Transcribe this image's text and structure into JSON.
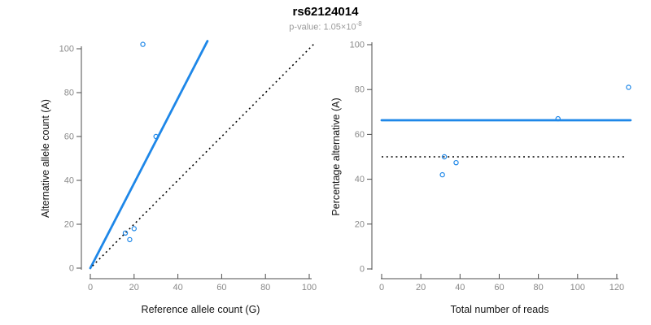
{
  "header": {
    "title": "rs62124014",
    "subtitle_prefix": "p-value: 1.05×10",
    "subtitle_exponent": "-8"
  },
  "colors": {
    "accent_blue": "#1E87E8",
    "dotted_line_black": "#000000",
    "tick_label_gray": "#8A8A8A",
    "axis_line_gray": "#4D4D4D",
    "axis_title_color": "#141414",
    "subtitle_gray": "#9A9A9A"
  },
  "chart_data": [
    {
      "type": "scatter",
      "name": "allele-counts-panel",
      "xlabel": "Reference allele count (G)",
      "ylabel": "Alternative allele count (A)",
      "xlim": [
        0,
        100
      ],
      "ylim": [
        0,
        100
      ],
      "xticks": [
        0,
        20,
        40,
        60,
        80,
        100
      ],
      "yticks": [
        0,
        20,
        40,
        60,
        80,
        100
      ],
      "grid": false,
      "legend": null,
      "points": [
        [
          24,
          102
        ],
        [
          30,
          60
        ],
        [
          20,
          18
        ],
        [
          16,
          16
        ],
        [
          18,
          13
        ]
      ],
      "lines": [
        {
          "name": "fit-line",
          "style": "solid",
          "color_key": "accent_blue",
          "x1": 0,
          "y1": 0,
          "x2": 53.5,
          "y2": 103.5
        },
        {
          "name": "identity-line",
          "style": "dotted",
          "color_key": "dotted_line_black",
          "x1": 1,
          "y1": 1,
          "x2": 102,
          "y2": 102
        }
      ]
    },
    {
      "type": "scatter",
      "name": "percentage-panel",
      "xlabel": "Total number of reads",
      "ylabel": "Percentage alternative (A)",
      "xlim": [
        0,
        127
      ],
      "ylim": [
        0,
        100
      ],
      "xticks": [
        0,
        20,
        40,
        60,
        80,
        100,
        120
      ],
      "yticks": [
        0,
        20,
        40,
        60,
        80,
        100
      ],
      "grid": false,
      "legend": null,
      "points": [
        [
          32,
          50
        ],
        [
          38,
          47.4
        ],
        [
          31,
          42
        ],
        [
          90,
          67
        ],
        [
          126,
          81
        ]
      ],
      "lines": [
        {
          "name": "fit-line",
          "style": "solid",
          "color_key": "accent_blue",
          "x1": 0,
          "y1": 66.3,
          "x2": 127,
          "y2": 66.3
        },
        {
          "name": "expected-line",
          "style": "dotted",
          "color_key": "dotted_line_black",
          "x1": 0,
          "y1": 50,
          "x2": 125,
          "y2": 50
        }
      ]
    }
  ]
}
